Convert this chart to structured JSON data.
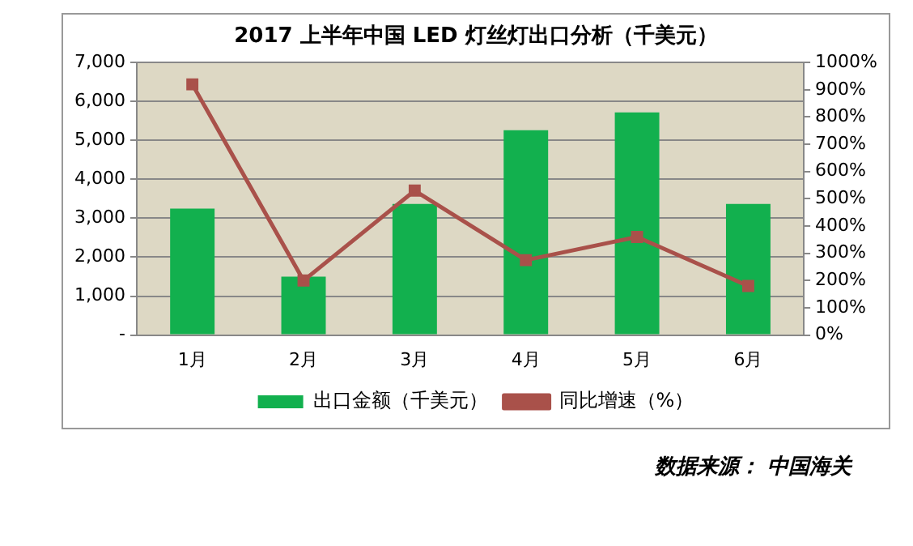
{
  "chart_data": {
    "type": "bar",
    "title": "2017 上半年中国 LED 灯丝灯出口分析（千美元）",
    "categories": [
      "1月",
      "2月",
      "3月",
      "4月",
      "5月",
      "6月"
    ],
    "series": [
      {
        "name": "出口金额（千美元）",
        "color": "#12b04e",
        "values": [
          3250,
          1500,
          3370,
          5260,
          5720,
          3370
        ]
      },
      {
        "name": "同比增速（%）",
        "type": "line",
        "axis": "y2",
        "color": "#a9514a",
        "marker": "square",
        "values": [
          920,
          200,
          530,
          275,
          360,
          180
        ]
      }
    ],
    "ylim": [
      0,
      7000
    ],
    "yticks": [
      {
        "value": 0,
        "label": "-"
      },
      {
        "value": 1000,
        "label": "1,000"
      },
      {
        "value": 2000,
        "label": "2,000"
      },
      {
        "value": 3000,
        "label": "3,000"
      },
      {
        "value": 4000,
        "label": "4,000"
      },
      {
        "value": 5000,
        "label": "5,000"
      },
      {
        "value": 6000,
        "label": "6,000"
      },
      {
        "value": 7000,
        "label": "7,000"
      }
    ],
    "y2lim": [
      0,
      1000
    ],
    "y2ticks": [
      {
        "value": 0,
        "label": "0%"
      },
      {
        "value": 100,
        "label": "100%"
      },
      {
        "value": 200,
        "label": "200%"
      },
      {
        "value": 300,
        "label": "300%"
      },
      {
        "value": 400,
        "label": "400%"
      },
      {
        "value": 500,
        "label": "500%"
      },
      {
        "value": 600,
        "label": "600%"
      },
      {
        "value": 700,
        "label": "700%"
      },
      {
        "value": 800,
        "label": "800%"
      },
      {
        "value": 900,
        "label": "900%"
      },
      {
        "value": 1000,
        "label": "1000%"
      }
    ],
    "grid": "y",
    "legend": "bottom",
    "annotations": [
      "数据来源： 中国海关"
    ]
  }
}
